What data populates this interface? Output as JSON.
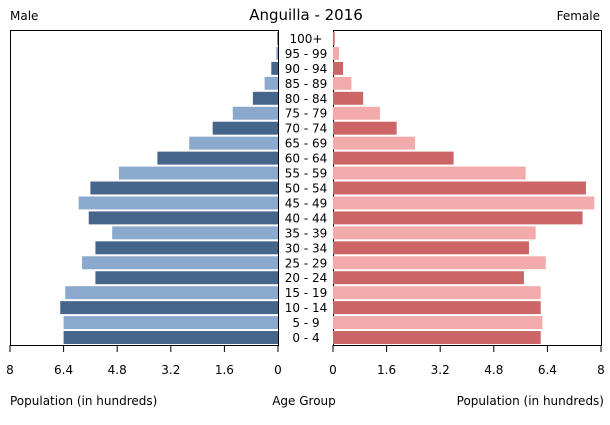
{
  "chart_data": {
    "type": "bar",
    "title": "Anguilla - 2016",
    "left_label": "Male",
    "right_label": "Female",
    "xlabel_left": "Population (in hundreds)",
    "xlabel_center": "Age Group",
    "xlabel_right": "Population (in hundreds)",
    "xlim": [
      0,
      8
    ],
    "ticks": [
      "8",
      "6.4",
      "4.8",
      "3.2",
      "1.6",
      "0"
    ],
    "ticks_right": [
      "0",
      "1.6",
      "3.2",
      "4.8",
      "6.4",
      "8"
    ],
    "tick_values": [
      8,
      6.4,
      4.8,
      3.2,
      1.6,
      0
    ],
    "tick_values_right": [
      0,
      1.6,
      3.2,
      4.8,
      6.4,
      8
    ],
    "categories": [
      "100+",
      "95 - 99",
      "90 - 94",
      "85 - 89",
      "80 - 84",
      "75 - 79",
      "70 - 74",
      "65 - 69",
      "60 - 64",
      "55 - 59",
      "50 - 54",
      "45 - 49",
      "40 - 44",
      "35 - 39",
      "30 - 34",
      "25 - 29",
      "20 - 24",
      "15 - 19",
      "10 - 14",
      "5 - 9",
      "0 - 4"
    ],
    "series": [
      {
        "name": "Male",
        "values": [
          0.02,
          0.05,
          0.2,
          0.4,
          0.75,
          1.35,
          1.95,
          2.65,
          3.6,
          4.75,
          5.6,
          5.95,
          5.65,
          4.95,
          5.45,
          5.85,
          5.45,
          6.35,
          6.5,
          6.4,
          6.4
        ]
      },
      {
        "name": "Female",
        "values": [
          0.05,
          0.18,
          0.3,
          0.55,
          0.9,
          1.4,
          1.9,
          2.45,
          3.6,
          5.75,
          7.55,
          7.8,
          7.45,
          6.05,
          5.85,
          6.35,
          5.7,
          6.2,
          6.2,
          6.25,
          6.2
        ]
      }
    ],
    "colors": {
      "male_dark": "#46658a",
      "male_light": "#8aa9cc",
      "female_dark": "#cc6666",
      "female_light": "#f2aaaa"
    }
  }
}
